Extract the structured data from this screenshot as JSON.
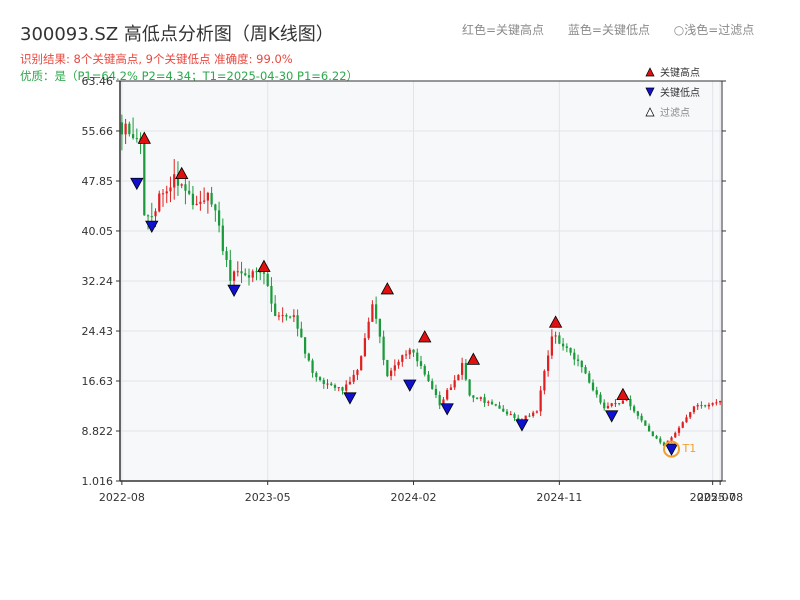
{
  "header": {
    "title": "300093.SZ 高低点分析图（周K线图）",
    "legend_top": [
      "红色=关键高点",
      "蓝色=关键低点",
      "○浅色=过滤点"
    ],
    "result_line": "识别结果: 8个关键高点, 9个关键低点  准确度: 99.0%",
    "quality_line": "优质：是（P1=64.2%  P2=4.34；T1=2025-04-30 P1=6.22）"
  },
  "colors": {
    "up": "#e02020",
    "down": "#1a9a3a",
    "high_marker": "#e01010",
    "low_marker": "#1010d0",
    "t1_circle": "#f0a030",
    "plot_bg": "#f7f8fa",
    "grid": "#e2e4ea"
  },
  "chart_data": {
    "type": "candlestick",
    "y_ticks": [
      "1.016",
      "8.822",
      "16.63",
      "24.43",
      "32.24",
      "40.05",
      "47.85",
      "55.66",
      "63.46"
    ],
    "ylim": [
      1.016,
      63.46
    ],
    "x_ticks": [
      {
        "label": "2022-08",
        "i": 0
      },
      {
        "label": "2023-05",
        "i": 39
      },
      {
        "label": "2024-02",
        "i": 78
      },
      {
        "label": "2024-11",
        "i": 117
      },
      {
        "label": "2025-07",
        "i": 158
      },
      {
        "label": "2025-08",
        "i": 160
      }
    ],
    "legend": [
      {
        "label": "关键高点",
        "kind": "high"
      },
      {
        "label": "关键低点",
        "kind": "low"
      },
      {
        "label": "过滤点",
        "kind": "filtered"
      }
    ],
    "anchors": [
      [
        0,
        57.0
      ],
      [
        6,
        53.0
      ],
      [
        4,
        47.0
      ],
      [
        8,
        42.0
      ],
      [
        15,
        49.0
      ],
      [
        20,
        45.0
      ],
      [
        25,
        45.0
      ],
      [
        30,
        33.0
      ],
      [
        39,
        33.0
      ],
      [
        42,
        27.0
      ],
      [
        47,
        27.0
      ],
      [
        52,
        17.5
      ],
      [
        60,
        15.0
      ],
      [
        64,
        18.0
      ],
      [
        68,
        29.0
      ],
      [
        72,
        17.5
      ],
      [
        78,
        22.0
      ],
      [
        82,
        17.5
      ],
      [
        86,
        13.0
      ],
      [
        92,
        19.0
      ],
      [
        94,
        14.5
      ],
      [
        100,
        13.0
      ],
      [
        107,
        10.5
      ],
      [
        112,
        12.0
      ],
      [
        116,
        24.0
      ],
      [
        123,
        19.5
      ],
      [
        130,
        12.5
      ],
      [
        136,
        13.5
      ],
      [
        143,
        8.0
      ],
      [
        146,
        6.5
      ],
      [
        150,
        9.5
      ],
      [
        154,
        12.5
      ],
      [
        160,
        13.2
      ]
    ],
    "key_highs": [
      {
        "i": 6,
        "price": 54.5
      },
      {
        "i": 16,
        "price": 49.0
      },
      {
        "i": 38,
        "price": 34.5
      },
      {
        "i": 71,
        "price": 31.0
      },
      {
        "i": 81,
        "price": 23.5
      },
      {
        "i": 94,
        "price": 20.0
      },
      {
        "i": 116,
        "price": 25.8
      },
      {
        "i": 134,
        "price": 14.5
      }
    ],
    "key_lows": [
      {
        "i": 4,
        "price": 47.5
      },
      {
        "i": 8,
        "price": 40.8
      },
      {
        "i": 30,
        "price": 30.8
      },
      {
        "i": 61,
        "price": 14.0
      },
      {
        "i": 77,
        "price": 16.0
      },
      {
        "i": 87,
        "price": 12.3
      },
      {
        "i": 107,
        "price": 9.8
      },
      {
        "i": 131,
        "price": 11.2
      },
      {
        "i": 147,
        "price": 6.0
      }
    ],
    "t1": {
      "label": "T1",
      "i": 147,
      "price": 6.0
    }
  }
}
